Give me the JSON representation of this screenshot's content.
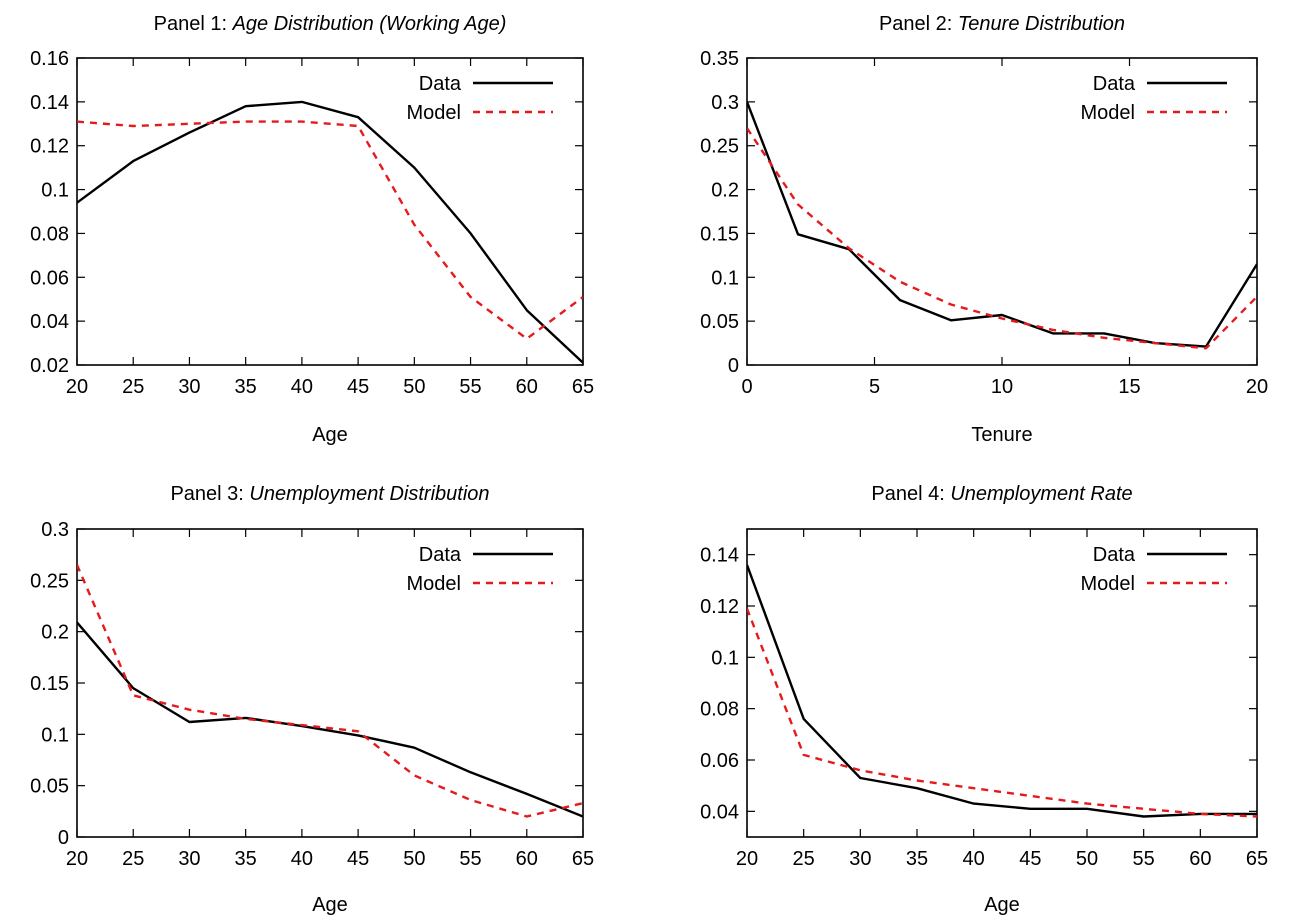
{
  "colors": {
    "data_series": "#000000",
    "model_series": "#e41a1c"
  },
  "chart_data": [
    {
      "type": "line",
      "title_prefix": "Panel 1: ",
      "title_italic": "Age Distribution (Working Age)",
      "xlabel": "Age",
      "ylabel": "",
      "xlim": [
        20,
        65
      ],
      "ylim": [
        0.02,
        0.16
      ],
      "xticks": [
        20,
        25,
        30,
        35,
        40,
        45,
        50,
        55,
        60,
        65
      ],
      "yticks": [
        0.02,
        0.04,
        0.06,
        0.08,
        0.1,
        0.12,
        0.14,
        0.16
      ],
      "ytick_labels": [
        "0.02",
        "0.04",
        "0.06",
        "0.08",
        "0.1",
        "0.12",
        "0.14",
        "0.16"
      ],
      "grid": false,
      "legend_position": "top-right",
      "series": [
        {
          "name": "Data",
          "style": "solid",
          "x": [
            20,
            25,
            30,
            35,
            40,
            45,
            50,
            55,
            60,
            65
          ],
          "y": [
            0.094,
            0.113,
            0.126,
            0.138,
            0.14,
            0.133,
            0.11,
            0.08,
            0.045,
            0.021
          ]
        },
        {
          "name": "Model",
          "style": "dashed",
          "x": [
            20,
            25,
            30,
            35,
            40,
            45,
            50,
            55,
            60,
            65
          ],
          "y": [
            0.131,
            0.129,
            0.13,
            0.131,
            0.131,
            0.129,
            0.084,
            0.051,
            0.032,
            0.051
          ]
        }
      ]
    },
    {
      "type": "line",
      "title_prefix": "Panel 2: ",
      "title_italic": "Tenure Distribution",
      "xlabel": "Tenure",
      "ylabel": "",
      "xlim": [
        0,
        20
      ],
      "ylim": [
        0,
        0.35
      ],
      "xticks": [
        0,
        5,
        10,
        15,
        20
      ],
      "yticks": [
        0,
        0.05,
        0.1,
        0.15,
        0.2,
        0.25,
        0.3,
        0.35
      ],
      "ytick_labels": [
        "0",
        "0.05",
        "0.1",
        "0.15",
        "0.2",
        "0.25",
        "0.3",
        "0.35"
      ],
      "grid": false,
      "legend_position": "top-right",
      "series": [
        {
          "name": "Data",
          "style": "solid",
          "x": [
            0,
            2,
            4,
            6,
            8,
            10,
            12,
            14,
            16,
            18,
            20
          ],
          "y": [
            0.3,
            0.149,
            0.132,
            0.074,
            0.051,
            0.057,
            0.036,
            0.036,
            0.025,
            0.021,
            0.115
          ]
        },
        {
          "name": "Model",
          "style": "dashed",
          "x": [
            0,
            2,
            4,
            6,
            8,
            10,
            12,
            14,
            16,
            18,
            20
          ],
          "y": [
            0.27,
            0.183,
            0.133,
            0.095,
            0.069,
            0.053,
            0.04,
            0.031,
            0.025,
            0.019,
            0.078
          ]
        }
      ]
    },
    {
      "type": "line",
      "title_prefix": "Panel 3: ",
      "title_italic": "Unemployment Distribution",
      "xlabel": "Age",
      "ylabel": "",
      "xlim": [
        20,
        65
      ],
      "ylim": [
        0,
        0.3
      ],
      "xticks": [
        20,
        25,
        30,
        35,
        40,
        45,
        50,
        55,
        60,
        65
      ],
      "yticks": [
        0,
        0.05,
        0.1,
        0.15,
        0.2,
        0.25,
        0.3
      ],
      "ytick_labels": [
        "0",
        "0.05",
        "0.1",
        "0.15",
        "0.2",
        "0.25",
        "0.3"
      ],
      "grid": false,
      "legend_position": "top-right",
      "series": [
        {
          "name": "Data",
          "style": "solid",
          "x": [
            20,
            25,
            30,
            35,
            40,
            45,
            50,
            55,
            60,
            65
          ],
          "y": [
            0.209,
            0.145,
            0.112,
            0.116,
            0.108,
            0.099,
            0.087,
            0.063,
            0.042,
            0.02
          ]
        },
        {
          "name": "Model",
          "style": "dashed",
          "x": [
            20,
            25,
            30,
            35,
            40,
            45,
            50,
            55,
            60,
            65
          ],
          "y": [
            0.265,
            0.138,
            0.124,
            0.115,
            0.109,
            0.103,
            0.06,
            0.036,
            0.02,
            0.033
          ]
        }
      ]
    },
    {
      "type": "line",
      "title_prefix": "Panel 4: ",
      "title_italic": "Unemployment Rate",
      "xlabel": "Age",
      "ylabel": "",
      "xlim": [
        20,
        65
      ],
      "ylim": [
        0.03,
        0.15
      ],
      "xticks": [
        20,
        25,
        30,
        35,
        40,
        45,
        50,
        55,
        60,
        65
      ],
      "yticks": [
        0.04,
        0.06,
        0.08,
        0.1,
        0.12,
        0.14
      ],
      "ytick_labels": [
        "0.04",
        "0.06",
        "0.08",
        "0.1",
        "0.12",
        "0.14"
      ],
      "grid": false,
      "legend_position": "top-right",
      "series": [
        {
          "name": "Data",
          "style": "solid",
          "x": [
            20,
            25,
            30,
            35,
            40,
            45,
            50,
            55,
            60,
            65
          ],
          "y": [
            0.136,
            0.076,
            0.053,
            0.049,
            0.043,
            0.041,
            0.041,
            0.038,
            0.039,
            0.039
          ]
        },
        {
          "name": "Model",
          "style": "dashed",
          "x": [
            20,
            25,
            30,
            35,
            40,
            45,
            50,
            55,
            60,
            65
          ],
          "y": [
            0.119,
            0.062,
            0.056,
            0.052,
            0.049,
            0.046,
            0.043,
            0.041,
            0.039,
            0.038
          ]
        }
      ]
    }
  ]
}
